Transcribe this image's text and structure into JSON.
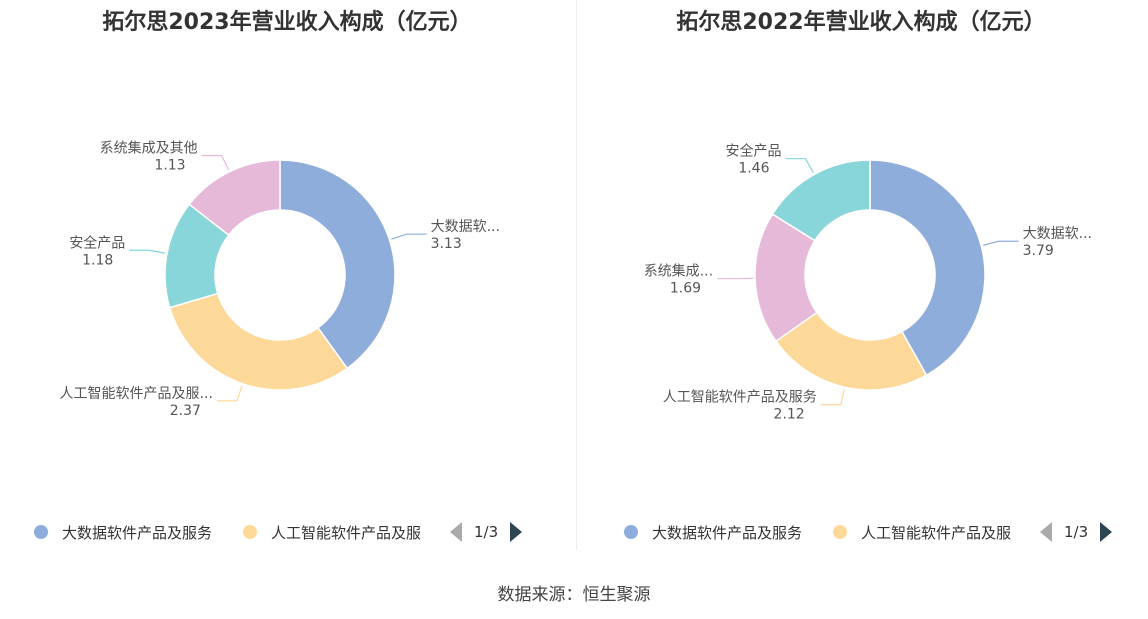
{
  "colors": {
    "big_data": "#8eaddb",
    "ai": "#fdd999",
    "security": "#88d5da",
    "system_integration": "#e7b9d9"
  },
  "chart_data": [
    {
      "type": "pie",
      "title": "拓尔思2023年营业收入构成（亿元）",
      "slices": [
        {
          "name": "大数据软件产品及服务",
          "label": "大数据软...",
          "value": 3.13,
          "value_text": "3.13",
          "color_key": "big_data"
        },
        {
          "name": "人工智能软件产品及服务",
          "label": "人工智能软件产品及服...",
          "value": 2.37,
          "value_text": "2.37",
          "color_key": "ai"
        },
        {
          "name": "安全产品",
          "label": "安全产品",
          "value": 1.18,
          "value_text": "1.18",
          "color_key": "security"
        },
        {
          "name": "系统集成及其他",
          "label": "系统集成及其他",
          "value": 1.13,
          "value_text": "1.13",
          "color_key": "system_integration"
        }
      ],
      "legend": {
        "items": [
          "大数据软件产品及服务",
          "人工智能软件产品及服"
        ],
        "page": "1/3",
        "placement": "bottom"
      }
    },
    {
      "type": "pie",
      "title": "拓尔思2022年营业收入构成（亿元）",
      "slices": [
        {
          "name": "大数据软件产品及服务",
          "label": "大数据软...",
          "value": 3.79,
          "value_text": "3.79",
          "color_key": "big_data"
        },
        {
          "name": "人工智能软件产品及服务",
          "label": "人工智能软件产品及服务",
          "value": 2.12,
          "value_text": "2.12",
          "color_key": "ai"
        },
        {
          "name": "系统集成及其他",
          "label": "系统集成...",
          "value": 1.69,
          "value_text": "1.69",
          "color_key": "system_integration"
        },
        {
          "name": "安全产品",
          "label": "安全产品",
          "value": 1.46,
          "value_text": "1.46",
          "color_key": "security"
        }
      ],
      "legend": {
        "items": [
          "大数据软件产品及服务",
          "人工智能软件产品及服"
        ],
        "page": "1/3",
        "placement": "bottom"
      }
    }
  ],
  "source": "数据来源：恒生聚源"
}
